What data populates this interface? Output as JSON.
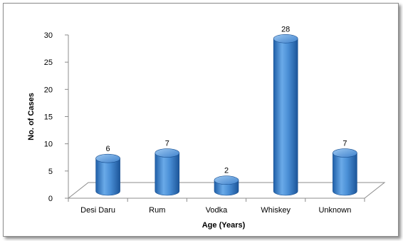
{
  "chart_data": {
    "type": "bar",
    "style": "3d-cylinder",
    "categories": [
      "Desi Daru",
      "Rum",
      "Vodka",
      "Whiskey",
      "Unknown"
    ],
    "values": [
      6,
      7,
      2,
      28,
      7
    ],
    "data_labels": [
      "6",
      "7",
      "2",
      "28",
      "7"
    ],
    "xlabel": "Age (Years)",
    "ylabel": "No. of Cases",
    "ylim": [
      0,
      30
    ],
    "yticks": [
      "0",
      "5",
      "10",
      "15",
      "20",
      "25",
      "30"
    ],
    "grid": false,
    "legend": "none",
    "colors": {
      "bar": "#4a8fd6",
      "bar_dark": "#1f5fa8",
      "bar_light": "#9cc8f2",
      "axis": "#8c8c8c"
    }
  }
}
